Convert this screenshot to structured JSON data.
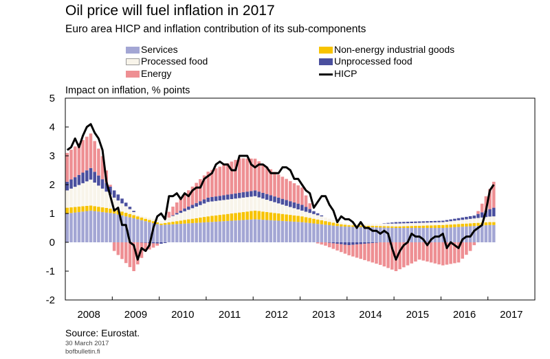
{
  "title": "Oil price will fuel inflation in 2017",
  "subtitle": "Euro area HICP and inflation contribution of its sub-components",
  "y_axis_title": "Impact on inflation, % points",
  "source": "Source: Eurostat.",
  "date": "30 March 2017",
  "site": "bofbulletin.fi",
  "legend": {
    "services": "Services",
    "processed_food": "Processed food",
    "energy": "Energy",
    "non_energy_goods": "Non-energy industrial goods",
    "unprocessed_food": "Unprocessed food",
    "hicp": "HICP"
  },
  "colors": {
    "services": "#a3a6d4",
    "processed_food": "#f8f4ea",
    "energy": "#ee8f93",
    "non_energy_goods": "#f7c300",
    "unprocessed_food": "#4a4f9e",
    "hicp": "#000000"
  },
  "chart_data": {
    "type": "bar",
    "stacked": true,
    "frequency": "monthly",
    "start": "2008-01",
    "end": "2017-02",
    "x_ticks": [
      "2008",
      "2009",
      "2010",
      "2011",
      "2012",
      "2013",
      "2014",
      "2015",
      "2016",
      "2017"
    ],
    "y_ticks": [
      "5",
      "4",
      "3",
      "2",
      "1",
      "0",
      "-1",
      "-2"
    ],
    "ylim": [
      -2,
      5
    ],
    "grid": false,
    "legend_position": "top",
    "series": [
      {
        "name": "Services",
        "key": "services",
        "anchors": [
          [
            0,
            1.0
          ],
          [
            6,
            1.1
          ],
          [
            12,
            1.0
          ],
          [
            18,
            0.8
          ],
          [
            24,
            0.6
          ],
          [
            36,
            0.7
          ],
          [
            48,
            0.8
          ],
          [
            60,
            0.7
          ],
          [
            70,
            0.55
          ],
          [
            84,
            0.5
          ],
          [
            96,
            0.5
          ],
          [
            108,
            0.6
          ],
          [
            109,
            0.6
          ]
        ]
      },
      {
        "name": "Non-energy industrial goods",
        "key": "non_energy_goods",
        "anchors": [
          [
            0,
            0.2
          ],
          [
            12,
            0.15
          ],
          [
            24,
            0.05
          ],
          [
            36,
            0.2
          ],
          [
            48,
            0.3
          ],
          [
            60,
            0.2
          ],
          [
            72,
            0.05
          ],
          [
            84,
            0.05
          ],
          [
            96,
            0.1
          ],
          [
            109,
            0.1
          ]
        ]
      },
      {
        "name": "Processed food",
        "key": "processed_food",
        "anchors": [
          [
            0,
            0.6
          ],
          [
            6,
            0.9
          ],
          [
            12,
            0.4
          ],
          [
            18,
            0.05
          ],
          [
            24,
            0.1
          ],
          [
            36,
            0.5
          ],
          [
            48,
            0.5
          ],
          [
            60,
            0.2
          ],
          [
            72,
            0.05
          ],
          [
            84,
            0.1
          ],
          [
            96,
            0.1
          ],
          [
            109,
            0.2
          ]
        ]
      },
      {
        "name": "Unprocessed food",
        "key": "unprocessed_food",
        "anchors": [
          [
            0,
            0.3
          ],
          [
            6,
            0.4
          ],
          [
            12,
            0.25
          ],
          [
            18,
            0.0
          ],
          [
            24,
            -0.05
          ],
          [
            30,
            0.1
          ],
          [
            36,
            0.15
          ],
          [
            48,
            0.2
          ],
          [
            60,
            0.2
          ],
          [
            66,
            0.0
          ],
          [
            72,
            -0.1
          ],
          [
            84,
            0.05
          ],
          [
            96,
            0.05
          ],
          [
            104,
            0.1
          ],
          [
            109,
            0.3
          ]
        ]
      },
      {
        "name": "Energy",
        "key": "energy",
        "anchors": [
          [
            0,
            1.0
          ],
          [
            6,
            1.2
          ],
          [
            9,
            0.8
          ],
          [
            12,
            -0.3
          ],
          [
            17,
            -1.0
          ],
          [
            20,
            -0.3
          ],
          [
            24,
            0.0
          ],
          [
            27,
            0.3
          ],
          [
            36,
            0.9
          ],
          [
            44,
            1.2
          ],
          [
            48,
            1.1
          ],
          [
            54,
            0.8
          ],
          [
            60,
            0.6
          ],
          [
            63,
            0.0
          ],
          [
            72,
            -0.35
          ],
          [
            84,
            -1.0
          ],
          [
            90,
            -0.6
          ],
          [
            96,
            -0.8
          ],
          [
            100,
            -0.7
          ],
          [
            103,
            -0.3
          ],
          [
            106,
            0.3
          ],
          [
            109,
            0.9
          ]
        ]
      },
      {
        "name": "HICP",
        "key": "hicp",
        "type": "line",
        "values": [
          3.2,
          3.3,
          3.6,
          3.3,
          3.7,
          4.0,
          4.1,
          3.8,
          3.6,
          3.2,
          2.1,
          1.6,
          1.1,
          1.2,
          0.6,
          0.6,
          0.0,
          -0.1,
          -0.6,
          -0.2,
          -0.3,
          -0.1,
          0.5,
          0.9,
          1.0,
          0.8,
          1.6,
          1.6,
          1.7,
          1.5,
          1.7,
          1.6,
          1.8,
          1.9,
          1.9,
          2.2,
          2.3,
          2.4,
          2.7,
          2.8,
          2.7,
          2.7,
          2.5,
          2.5,
          3.0,
          3.0,
          3.0,
          2.7,
          2.6,
          2.7,
          2.7,
          2.6,
          2.4,
          2.4,
          2.4,
          2.6,
          2.6,
          2.5,
          2.2,
          2.2,
          2.0,
          1.8,
          1.7,
          1.2,
          1.4,
          1.6,
          1.6,
          1.3,
          1.1,
          0.7,
          0.9,
          0.8,
          0.8,
          0.7,
          0.5,
          0.7,
          0.5,
          0.5,
          0.4,
          0.4,
          0.3,
          0.4,
          0.3,
          -0.2,
          -0.6,
          -0.3,
          -0.1,
          0.0,
          0.3,
          0.2,
          0.2,
          0.1,
          -0.1,
          0.1,
          0.2,
          0.2,
          0.3,
          -0.2,
          0.0,
          -0.1,
          -0.2,
          0.1,
          0.2,
          0.2,
          0.4,
          0.5,
          0.6,
          1.1,
          1.8,
          2.0
        ]
      }
    ]
  }
}
